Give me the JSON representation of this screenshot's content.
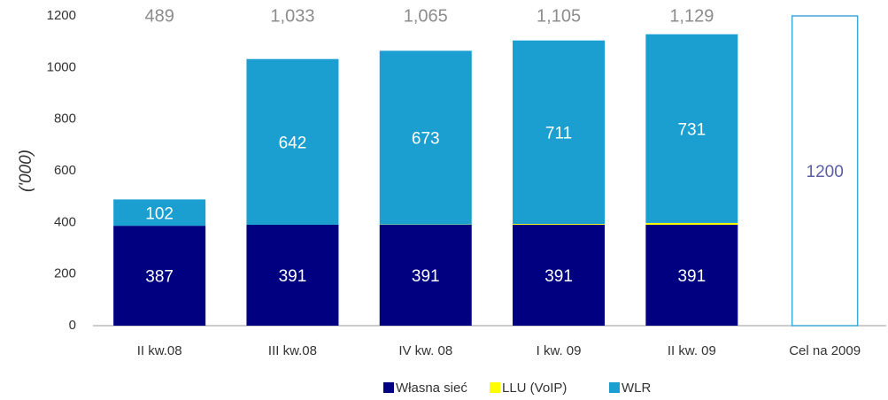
{
  "chart_data": {
    "type": "stacked_bar",
    "y_label": "('000)",
    "categories": [
      "II kw.08",
      "III kw.08",
      "IV kw. 08",
      "I kw. 09",
      "II kw. 09",
      "Cel na 2009"
    ],
    "series": [
      {
        "name": "Własna sieć",
        "color": "#000080",
        "labeled": true,
        "values": [
          387,
          391,
          391,
          391,
          391,
          null
        ]
      },
      {
        "name": "LLU (VoIP)",
        "color": "#ffff00",
        "labeled": false,
        "values": [
          0,
          0,
          1,
          3,
          7,
          null
        ]
      },
      {
        "name": "WLR",
        "color": "#1a9fd0",
        "labeled": true,
        "values": [
          102,
          642,
          673,
          711,
          731,
          null
        ]
      }
    ],
    "totals": [
      489,
      1033,
      1065,
      1105,
      1129,
      null
    ],
    "totals_labels": [
      "489",
      "1,033",
      "1,065",
      "1,105",
      "1,129",
      null
    ],
    "target": {
      "category": 5,
      "value": 1200,
      "color": "#3fa9d6",
      "label_color": "#5b5ea6"
    },
    "ylim": [
      0,
      1200
    ],
    "yticks": [
      0,
      200,
      400,
      600,
      800,
      1000,
      1200
    ],
    "grid": false,
    "legend": "bottom"
  }
}
